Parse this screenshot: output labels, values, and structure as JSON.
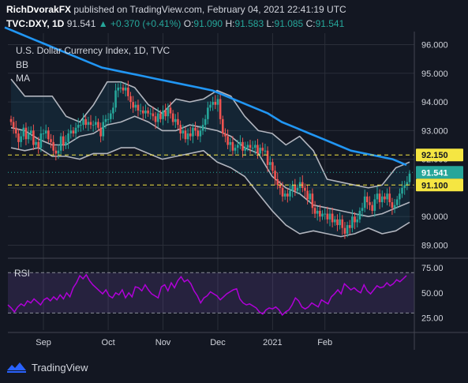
{
  "header": {
    "author": "RichDvorakFX",
    "published_text": "published on TradingView.com, February 04, 2021 22:41:19 UTC",
    "symbol": "TVC:DXY, 1D",
    "last": "91.541",
    "arrow": "▲",
    "change": "+0.370 (+0.41%)",
    "o_label": "O:",
    "o_value": "91.090",
    "h_label": "H:",
    "h_value": "91.583",
    "l_label": "L:",
    "l_value": "91.085",
    "c_label": "C:",
    "c_value": "91.541"
  },
  "footer": {
    "brand": "TradingView",
    "icon": "tradingview-logo-icon"
  },
  "colors": {
    "background": "#131722",
    "up": "#26a69a",
    "down": "#ef5350",
    "ma": "#2196f3",
    "bb": "#b2b5be",
    "rsi": "#b000d8",
    "yellow": "#f5e642",
    "grid": "#2a2e39"
  },
  "chart_data": [
    {
      "type": "candlestick",
      "title": "U.S. Dollar Currency Index, 1D, TVC",
      "legend": [
        "BB",
        "MA"
      ],
      "y_ticks": [
        "96.000",
        "95.000",
        "94.000",
        "93.000",
        "92.000",
        "91.000",
        "90.000",
        "89.000"
      ],
      "ylim": [
        88.6,
        96.4
      ],
      "x_ticks": [
        "Sep",
        "Oct",
        "Nov",
        "Dec",
        "2021",
        "Feb"
      ],
      "grid": true,
      "price_labels": [
        {
          "value": 92.15,
          "text": "92.150",
          "style": "yellow-dashed"
        },
        {
          "value": 91.541,
          "text": "91.541",
          "style": "last-price"
        },
        {
          "value": 91.1,
          "text": "91.100",
          "style": "yellow-dashed"
        }
      ],
      "series": [
        {
          "name": "TVC:DXY",
          "style": "candles",
          "close": [
            93.3,
            93.1,
            92.9,
            92.6,
            92.8,
            93.1,
            92.7,
            92.9,
            93.0,
            92.5,
            92.6,
            92.4,
            92.9,
            92.9,
            93.0,
            92.7,
            92.6,
            92.3,
            92.2,
            92.3,
            92.8,
            92.5,
            92.6,
            92.9,
            93.0,
            92.9,
            93.1,
            93.2,
            93.2,
            93.4,
            93.2,
            93.3,
            93.2,
            93.2,
            93.3,
            93.1,
            92.8,
            93.3,
            93.4,
            93.4,
            93.6,
            93.8,
            94.4,
            94.5,
            94.5,
            94.4,
            94.5,
            94.2,
            94.0,
            93.8,
            93.9,
            93.7,
            93.7,
            93.6,
            93.7,
            93.6,
            93.6,
            93.5,
            93.3,
            93.6,
            93.4,
            93.7,
            93.5,
            93.8,
            93.6,
            93.3,
            93.4,
            93.2,
            92.9,
            93.0,
            92.7,
            92.9,
            92.8,
            93.1,
            93.0,
            92.8,
            93.0,
            93.2,
            93.4,
            93.8,
            93.9,
            94.0,
            93.9,
            94.1,
            93.4,
            92.9,
            92.8,
            92.5,
            92.6,
            92.3,
            92.4,
            92.5,
            92.6,
            92.3,
            92.4,
            92.5,
            92.4,
            92.4,
            92.5,
            92.2,
            92.4,
            92.3,
            92.3,
            91.8,
            91.9,
            91.6,
            91.3,
            91.1,
            91.0,
            90.7,
            90.8,
            90.7,
            90.9,
            91.1,
            90.9,
            91.0,
            91.2,
            91.0,
            90.9,
            90.6,
            90.8,
            90.3,
            90.1,
            90.2,
            90.0,
            90.1,
            90.1,
            89.9,
            90.1,
            89.8,
            89.9,
            89.7,
            89.9,
            89.6,
            89.4,
            89.7,
            89.6,
            90.0,
            89.8,
            89.9,
            90.2,
            90.3,
            90.7,
            90.5,
            90.4,
            90.2,
            90.6,
            90.8,
            90.5,
            90.7,
            90.6,
            90.8,
            90.5,
            90.3,
            90.4,
            90.6,
            90.8,
            91.0,
            91.1,
            91.2,
            91.5
          ]
        },
        {
          "name": "MA",
          "style": "line",
          "values": [
            96.6,
            96.4,
            96.2,
            96.0,
            95.8,
            95.6,
            95.4,
            95.2,
            95.1,
            95.0,
            94.9,
            94.8,
            94.7,
            94.6,
            94.5,
            94.4,
            94.2,
            94.0,
            93.8,
            93.6,
            93.3,
            93.1,
            92.9,
            92.7,
            92.5,
            92.3,
            92.2,
            92.1,
            92.0,
            91.8
          ]
        },
        {
          "name": "BB upper",
          "style": "line",
          "values": [
            94.8,
            94.2,
            94.2,
            94.2,
            93.5,
            93.3,
            93.9,
            94.7,
            94.7,
            94.5,
            93.9,
            93.6,
            94.1,
            94.0,
            94.1,
            94.4,
            94.2,
            93.5,
            93.0,
            92.9,
            92.5,
            92.8,
            92.3,
            91.3,
            91.2,
            91.1,
            91.0,
            91.1,
            91.7,
            91.9
          ]
        },
        {
          "name": "BB middle",
          "style": "line",
          "values": [
            93.1,
            93.0,
            92.7,
            92.5,
            92.5,
            92.8,
            92.9,
            93.2,
            93.3,
            93.5,
            93.3,
            93.0,
            93.0,
            93.2,
            93.1,
            93.0,
            92.8,
            92.4,
            92.2,
            91.4,
            91.0,
            90.8,
            90.4,
            90.3,
            90.2,
            90.1,
            90.0,
            90.1,
            90.3,
            90.5
          ]
        },
        {
          "name": "BB lower",
          "style": "line",
          "values": [
            92.4,
            92.3,
            92.4,
            92.1,
            92.1,
            92.0,
            92.2,
            92.2,
            92.4,
            92.4,
            92.2,
            92.0,
            92.1,
            92.2,
            92.3,
            91.9,
            91.7,
            91.4,
            90.8,
            90.2,
            89.7,
            89.4,
            89.5,
            89.4,
            89.3,
            89.4,
            89.6,
            89.4,
            89.5,
            89.8
          ]
        }
      ]
    },
    {
      "type": "line",
      "title": "RSI",
      "y_ticks": [
        "75.00",
        "50.00",
        "25.00"
      ],
      "ylim": [
        13,
        82
      ],
      "bands": [
        70,
        30
      ],
      "series": [
        {
          "name": "RSI",
          "values": [
            38,
            35,
            31,
            36,
            39,
            37,
            42,
            40,
            44,
            41,
            38,
            43,
            45,
            42,
            46,
            43,
            48,
            44,
            50,
            46,
            55,
            60,
            67,
            64,
            68,
            62,
            58,
            55,
            52,
            49,
            53,
            47,
            45,
            50,
            48,
            53,
            45,
            50,
            46,
            56,
            55,
            52,
            58,
            53,
            49,
            47,
            45,
            56,
            58,
            52,
            60,
            55,
            62,
            66,
            61,
            63,
            59,
            52,
            47,
            40,
            45,
            47,
            51,
            49,
            47,
            43,
            46,
            49,
            51,
            53,
            54,
            44,
            40,
            38,
            39,
            37,
            35,
            31,
            29,
            33,
            35,
            34,
            36,
            33,
            28,
            31,
            33,
            38,
            45,
            42,
            36,
            34,
            36,
            40,
            38,
            36,
            43,
            41,
            39,
            46,
            49,
            53,
            49,
            59,
            56,
            53,
            55,
            52,
            50,
            58,
            52,
            49,
            53,
            57,
            55,
            56,
            60,
            57,
            59,
            63,
            61,
            64,
            67
          ]
        }
      ]
    }
  ]
}
